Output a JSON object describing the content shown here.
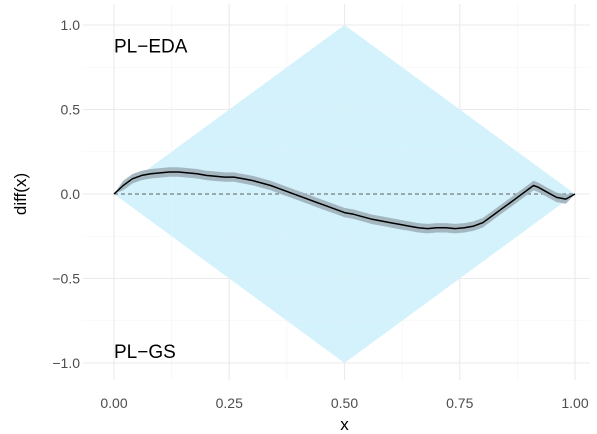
{
  "chart_data": {
    "type": "line",
    "xlabel": "x",
    "ylabel": "diff(x)",
    "xlim": [
      0,
      1
    ],
    "ylim": [
      -1,
      1
    ],
    "x_ticks": [
      0,
      0.25,
      0.5,
      0.75,
      1
    ],
    "x_tick_labels": [
      "0.00",
      "0.25",
      "0.50",
      "0.75",
      "1.00"
    ],
    "y_ticks": [
      -1,
      -0.5,
      0,
      0.5,
      1
    ],
    "y_tick_labels": [
      "−1.0",
      "−0.5",
      "0.0",
      "0.5",
      "1.0"
    ],
    "grid": true,
    "annotations": [
      {
        "text": "PL−EDA",
        "x": 0,
        "y": 0.88
      },
      {
        "text": "PL−GS",
        "x": 0,
        "y": -0.93
      }
    ],
    "region": {
      "points": [
        [
          0,
          0
        ],
        [
          0.5,
          1
        ],
        [
          1,
          0
        ],
        [
          0.5,
          -1
        ]
      ],
      "color": "#d3f2fc"
    },
    "reference_line": {
      "y": 0,
      "style": "dashed"
    },
    "band_halfwidth": 0.028,
    "band_color": "#9fb0b9",
    "line_color": "#000000",
    "line": {
      "x": [
        0,
        0.02,
        0.04,
        0.06,
        0.08,
        0.1,
        0.12,
        0.14,
        0.16,
        0.18,
        0.2,
        0.22,
        0.24,
        0.26,
        0.28,
        0.3,
        0.32,
        0.34,
        0.36,
        0.38,
        0.4,
        0.42,
        0.44,
        0.46,
        0.48,
        0.5,
        0.52,
        0.54,
        0.56,
        0.58,
        0.6,
        0.62,
        0.64,
        0.66,
        0.68,
        0.7,
        0.72,
        0.74,
        0.76,
        0.78,
        0.8,
        0.82,
        0.84,
        0.86,
        0.88,
        0.9,
        0.91,
        0.92,
        0.94,
        0.96,
        0.98,
        1.0
      ],
      "y": [
        0,
        0.05,
        0.09,
        0.11,
        0.12,
        0.125,
        0.13,
        0.13,
        0.125,
        0.12,
        0.11,
        0.105,
        0.1,
        0.1,
        0.09,
        0.08,
        0.065,
        0.05,
        0.03,
        0.01,
        -0.01,
        -0.03,
        -0.05,
        -0.07,
        -0.09,
        -0.11,
        -0.12,
        -0.135,
        -0.15,
        -0.16,
        -0.17,
        -0.18,
        -0.19,
        -0.2,
        -0.205,
        -0.2,
        -0.2,
        -0.205,
        -0.2,
        -0.19,
        -0.17,
        -0.13,
        -0.09,
        -0.05,
        -0.01,
        0.03,
        0.05,
        0.04,
        0.01,
        -0.02,
        -0.03,
        0
      ]
    }
  }
}
